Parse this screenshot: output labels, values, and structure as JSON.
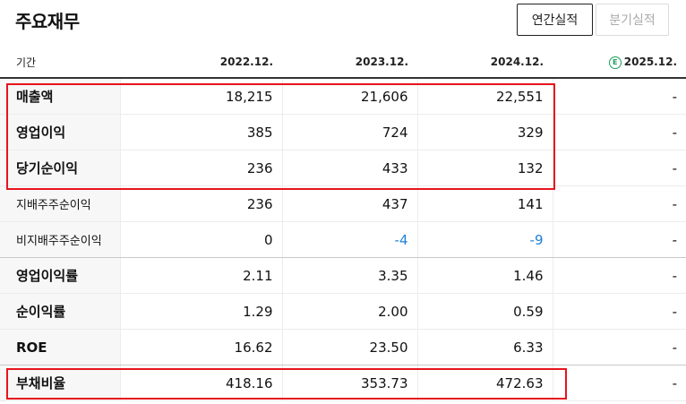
{
  "header": {
    "title": "주요재무",
    "tabs": [
      {
        "label": "연간실적",
        "active": true
      },
      {
        "label": "분기실적",
        "active": false
      }
    ]
  },
  "table": {
    "label_header": "기간",
    "estimate_badge": "E",
    "columns": [
      "2022.12.",
      "2023.12.",
      "2024.12.",
      "2025.12."
    ],
    "rows": [
      {
        "label": "매출액",
        "values": [
          "18,215",
          "21,606",
          "22,551",
          "-"
        ]
      },
      {
        "label": "영업이익",
        "values": [
          "385",
          "724",
          "329",
          "-"
        ]
      },
      {
        "label": "당기순이익",
        "values": [
          "236",
          "433",
          "132",
          "-"
        ]
      },
      {
        "label": "지배주주순이익",
        "values": [
          "236",
          "437",
          "141",
          "-"
        ]
      },
      {
        "label": "비지배주주순이익",
        "values": [
          "0",
          "-4",
          "-9",
          "-"
        ]
      },
      {
        "label": "영업이익률",
        "values": [
          "2.11",
          "3.35",
          "1.46",
          "-"
        ]
      },
      {
        "label": "순이익률",
        "values": [
          "1.29",
          "2.00",
          "0.59",
          "-"
        ]
      },
      {
        "label": "ROE",
        "values": [
          "16.62",
          "23.50",
          "6.33",
          "-"
        ]
      },
      {
        "label": "부채비율",
        "values": [
          "418.16",
          "353.73",
          "472.63",
          "-"
        ]
      }
    ]
  },
  "colors": {
    "highlight": "#e8141c",
    "negative": "#1e7fd8",
    "estimate": "#19a05a"
  }
}
